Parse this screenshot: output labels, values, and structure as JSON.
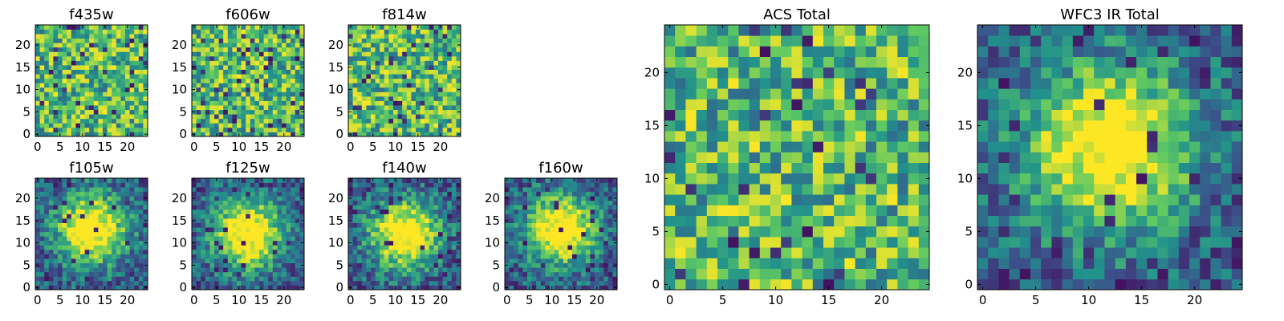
{
  "colormap": [
    "#440154",
    "#3b528b",
    "#21918c",
    "#5ec962",
    "#fde725"
  ],
  "chart_data": [
    {
      "type": "heatmap",
      "title": "f435w",
      "grid_size": 25,
      "xlim": [
        -0.5,
        24.5
      ],
      "ylim": [
        -0.5,
        24.5
      ],
      "xticks": [
        0,
        5,
        10,
        15,
        20
      ],
      "yticks": [
        0,
        5,
        10,
        15,
        20
      ],
      "pattern": "noise",
      "seed": 11,
      "value_range": [
        0,
        1
      ],
      "colorbar": false
    },
    {
      "type": "heatmap",
      "title": "f606w",
      "grid_size": 25,
      "xlim": [
        -0.5,
        24.5
      ],
      "ylim": [
        -0.5,
        24.5
      ],
      "xticks": [
        0,
        5,
        10,
        15,
        20
      ],
      "yticks": [
        0,
        5,
        10,
        15,
        20
      ],
      "pattern": "noise",
      "seed": 23,
      "value_range": [
        0,
        1
      ],
      "colorbar": false
    },
    {
      "type": "heatmap",
      "title": "f814w",
      "grid_size": 25,
      "xlim": [
        -0.5,
        24.5
      ],
      "ylim": [
        -0.5,
        24.5
      ],
      "xticks": [
        0,
        5,
        10,
        15,
        20
      ],
      "yticks": [
        0,
        5,
        10,
        15,
        20
      ],
      "pattern": "noise",
      "seed": 37,
      "value_range": [
        0,
        1
      ],
      "colorbar": false
    },
    {
      "type": "heatmap",
      "title": "f105w",
      "grid_size": 25,
      "xlim": [
        -0.5,
        24.5
      ],
      "ylim": [
        -0.5,
        24.5
      ],
      "xticks": [
        0,
        5,
        10,
        15,
        20
      ],
      "yticks": [
        0,
        5,
        10,
        15,
        20
      ],
      "pattern": "blob",
      "blob_center": [
        12,
        13
      ],
      "seed": 41,
      "value_range": [
        0,
        1
      ],
      "colorbar": false
    },
    {
      "type": "heatmap",
      "title": "f125w",
      "grid_size": 25,
      "xlim": [
        -0.5,
        24.5
      ],
      "ylim": [
        -0.5,
        24.5
      ],
      "xticks": [
        0,
        5,
        10,
        15,
        20
      ],
      "yticks": [
        0,
        5,
        10,
        15,
        20
      ],
      "pattern": "blob",
      "blob_center": [
        12,
        12
      ],
      "seed": 53,
      "value_range": [
        0,
        1
      ],
      "colorbar": false
    },
    {
      "type": "heatmap",
      "title": "f140w",
      "grid_size": 25,
      "xlim": [
        -0.5,
        24.5
      ],
      "ylim": [
        -0.5,
        24.5
      ],
      "xticks": [
        0,
        5,
        10,
        15,
        20
      ],
      "yticks": [
        0,
        5,
        10,
        15,
        20
      ],
      "pattern": "blob",
      "blob_center": [
        12,
        12
      ],
      "seed": 67,
      "value_range": [
        0,
        1
      ],
      "colorbar": false
    },
    {
      "type": "heatmap",
      "title": "f160w",
      "grid_size": 25,
      "xlim": [
        -0.5,
        24.5
      ],
      "ylim": [
        -0.5,
        24.5
      ],
      "xticks": [
        0,
        5,
        10,
        15,
        20
      ],
      "yticks": [
        0,
        5,
        10,
        15,
        20
      ],
      "pattern": "blob",
      "blob_center": [
        12,
        13
      ],
      "seed": 79,
      "value_range": [
        0,
        1
      ],
      "colorbar": false
    },
    {
      "type": "heatmap",
      "title": "ACS Total",
      "grid_size": 25,
      "xlim": [
        -0.5,
        24.5
      ],
      "ylim": [
        -0.5,
        24.5
      ],
      "xticks": [
        0,
        5,
        10,
        15,
        20
      ],
      "yticks": [
        0,
        5,
        10,
        15,
        20
      ],
      "pattern": "noise",
      "seed": 83,
      "value_range": [
        0,
        1
      ],
      "colorbar": false
    },
    {
      "type": "heatmap",
      "title": "WFC3 IR Total",
      "grid_size": 25,
      "xlim": [
        -0.5,
        24.5
      ],
      "ylim": [
        -0.5,
        24.5
      ],
      "xticks": [
        0,
        5,
        10,
        15,
        20
      ],
      "yticks": [
        0,
        5,
        10,
        15,
        20
      ],
      "pattern": "blob",
      "blob_center": [
        12,
        13
      ],
      "seed": 97,
      "value_range": [
        0,
        1
      ],
      "colorbar": false
    }
  ]
}
